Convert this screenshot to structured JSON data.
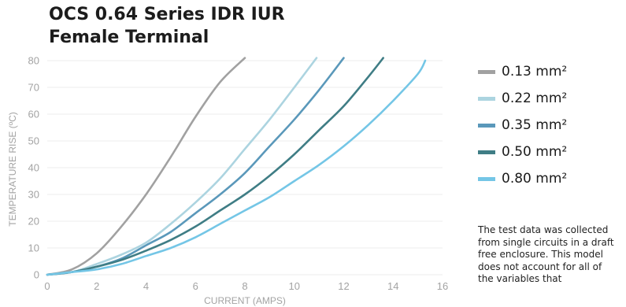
{
  "title_lines": [
    "OCS 0.64 Series IDR IUR",
    "Female Terminal"
  ],
  "note": "The test data was collected from single circuits in a draft free enclosure. This model does not account for all of the variables that",
  "chart_data": {
    "type": "line",
    "title": "OCS 0.64 Series IDR IUR Female Terminal",
    "xlabel": "CURRENT (AMPS)",
    "ylabel": "TEMPERATURE RISE (ºC)",
    "xlim": [
      0,
      16
    ],
    "ylim": [
      0,
      80
    ],
    "xticks": [
      0,
      2,
      4,
      6,
      8,
      10,
      12,
      14,
      16
    ],
    "yticks": [
      0,
      10,
      20,
      30,
      40,
      50,
      60,
      70,
      80
    ],
    "grid": "horizontal",
    "legend_position": "right",
    "series": [
      {
        "name": "0.13 mm²",
        "color": "#a1a1a1",
        "x": [
          0,
          1,
          2,
          3,
          4,
          5,
          6,
          7,
          8
        ],
        "y": [
          0,
          2,
          8,
          18,
          30,
          44,
          59,
          72,
          81
        ]
      },
      {
        "name": "0.22 mm²",
        "color": "#acd4e0",
        "x": [
          0,
          1,
          2,
          3,
          4,
          5,
          6,
          7,
          8,
          9,
          10,
          10.9
        ],
        "y": [
          0,
          1,
          4,
          7.5,
          12,
          19,
          27,
          36,
          47,
          58,
          70,
          81
        ]
      },
      {
        "name": "0.35 mm²",
        "color": "#5a98ba",
        "x": [
          0,
          1,
          2,
          3,
          4,
          5,
          6,
          7,
          8,
          9,
          10,
          11,
          12
        ],
        "y": [
          0,
          1,
          3,
          6,
          11,
          16,
          23,
          30,
          38,
          48,
          58,
          69,
          81
        ]
      },
      {
        "name": "0.50 mm²",
        "color": "#3f7d85",
        "x": [
          0,
          1,
          2,
          3,
          4,
          5,
          6,
          7,
          8,
          9,
          10,
          11,
          12,
          13,
          13.6
        ],
        "y": [
          0,
          1,
          3,
          5.5,
          9,
          13,
          18,
          24,
          30,
          37,
          45,
          54,
          63,
          74,
          81
        ]
      },
      {
        "name": "0.80 mm²",
        "color": "#74c6e6",
        "x": [
          0,
          1,
          2,
          3,
          4,
          5,
          6,
          7,
          8,
          9,
          10,
          11,
          12,
          13,
          14,
          15,
          15.3
        ],
        "y": [
          0,
          1,
          2,
          4,
          7,
          10,
          14,
          19,
          24,
          29,
          35,
          41,
          48,
          56,
          65,
          75,
          80
        ]
      }
    ]
  }
}
